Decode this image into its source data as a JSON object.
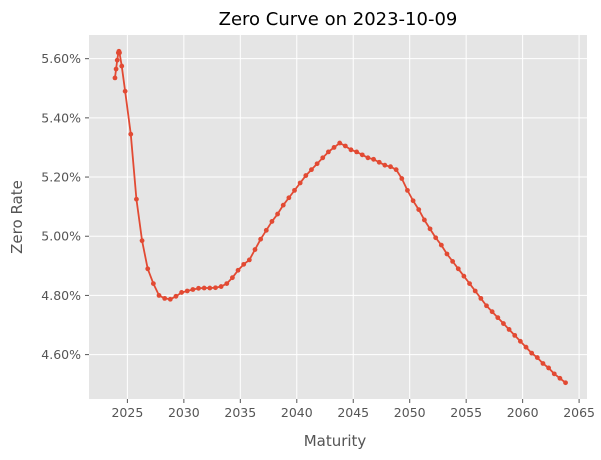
{
  "chart_data": {
    "type": "line",
    "title": "Zero Curve on 2023-10-09",
    "xlabel": "Maturity",
    "ylabel": "Zero Rate",
    "xlim": [
      2021.6,
      2065.7
    ],
    "ylim": [
      4.45,
      5.68
    ],
    "xticks": [
      2025,
      2030,
      2035,
      2040,
      2045,
      2050,
      2055,
      2060,
      2065
    ],
    "yticks": [
      4.6,
      4.8,
      5.0,
      5.2,
      5.4,
      5.6
    ],
    "ytick_labels": [
      "4.60%",
      "4.80%",
      "5.00%",
      "5.20%",
      "5.40%",
      "5.60%"
    ],
    "grid": true,
    "style": "ggplot",
    "colors": {
      "background": "#E5E5E5",
      "grid": "#FFFFFF",
      "line": "#E24A33"
    },
    "series": [
      {
        "x": [
          2023.9,
          2024.0,
          2024.1,
          2024.2,
          2024.25,
          2024.3,
          2024.5,
          2024.8,
          2025.3,
          2025.8,
          2026.3,
          2026.8,
          2027.3,
          2027.8,
          2028.3,
          2028.8,
          2029.3,
          2029.8,
          2030.3,
          2030.8,
          2031.3,
          2031.8,
          2032.3,
          2032.8,
          2033.3,
          2033.8,
          2034.3,
          2034.8,
          2035.3,
          2035.8,
          2036.3,
          2036.8,
          2037.3,
          2037.8,
          2038.3,
          2038.8,
          2039.3,
          2039.8,
          2040.3,
          2040.8,
          2041.3,
          2041.8,
          2042.3,
          2042.8,
          2043.3,
          2043.8,
          2044.3,
          2044.8,
          2045.3,
          2045.8,
          2046.3,
          2046.8,
          2047.3,
          2047.8,
          2048.3,
          2048.8,
          2049.3,
          2049.8,
          2050.3,
          2050.8,
          2051.3,
          2051.8,
          2052.3,
          2052.8,
          2053.3,
          2053.8,
          2054.3,
          2054.8,
          2055.3,
          2055.8,
          2056.3,
          2056.8,
          2057.3,
          2057.8,
          2058.3,
          2058.8,
          2059.3,
          2059.8,
          2060.3,
          2060.8,
          2061.3,
          2061.8,
          2062.3,
          2062.8,
          2063.3,
          2063.8
        ],
        "y": [
          5.535,
          5.565,
          5.595,
          5.62,
          5.625,
          5.62,
          5.575,
          5.49,
          5.345,
          5.125,
          4.985,
          4.89,
          4.84,
          4.8,
          4.79,
          4.787,
          4.797,
          4.81,
          4.815,
          4.82,
          4.824,
          4.825,
          4.825,
          4.826,
          4.83,
          4.84,
          4.86,
          4.885,
          4.905,
          4.92,
          4.955,
          4.99,
          5.02,
          5.05,
          5.075,
          5.105,
          5.13,
          5.155,
          5.18,
          5.205,
          5.225,
          5.245,
          5.265,
          5.285,
          5.3,
          5.315,
          5.305,
          5.292,
          5.285,
          5.275,
          5.265,
          5.26,
          5.25,
          5.24,
          5.235,
          5.225,
          5.195,
          5.155,
          5.12,
          5.09,
          5.055,
          5.025,
          4.995,
          4.97,
          4.94,
          4.915,
          4.89,
          4.865,
          4.84,
          4.815,
          4.79,
          4.765,
          4.745,
          4.725,
          4.705,
          4.685,
          4.665,
          4.645,
          4.625,
          4.605,
          4.59,
          4.57,
          4.555,
          4.535,
          4.52,
          4.505
        ]
      }
    ]
  }
}
